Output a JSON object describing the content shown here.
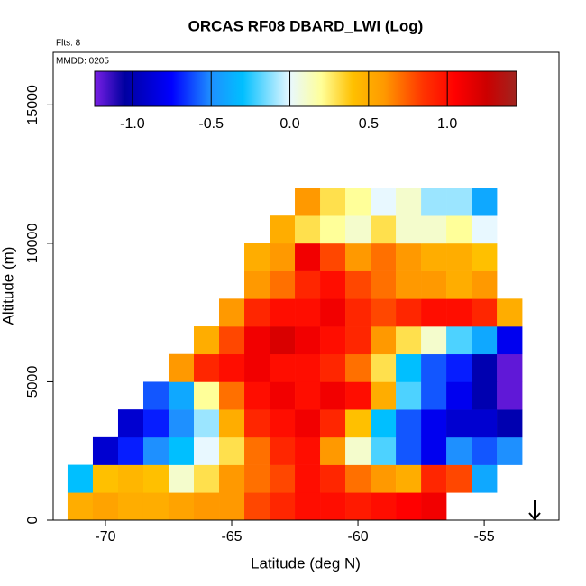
{
  "chart_data": {
    "type": "heatmap",
    "title": "ORCAS RF08 DBARD_LWI (Log)",
    "annotations": [
      "Flts: 8",
      "MMDD: 0205"
    ],
    "xlabel": "Latitude (deg N)",
    "ylabel": "Altitude (m)",
    "xlim": [
      -72.07,
      -52.04
    ],
    "ylim": [
      0,
      16900
    ],
    "xticks": [
      -70,
      -65,
      -60,
      -55
    ],
    "yticks": [
      0,
      5000,
      10000,
      15000
    ],
    "x": [
      -71,
      -70,
      -69,
      -68,
      -67,
      -66,
      -65,
      -64,
      -63,
      -62,
      -61,
      -60,
      -59,
      -58,
      -57,
      -56,
      -55,
      -54
    ],
    "y": [
      500,
      1500,
      2500,
      3500,
      4500,
      5500,
      6500,
      7500,
      8500,
      9500,
      10500,
      11500
    ],
    "z": [
      [
        0.5,
        0.55,
        0.5,
        0.5,
        0.55,
        0.6,
        0.6,
        0.8,
        0.9,
        1.0,
        1.0,
        0.95,
        1.0,
        1.05,
        1.1,
        null,
        null,
        null
      ],
      [
        -0.3,
        0.4,
        0.45,
        0.4,
        0.1,
        0.3,
        0.6,
        0.7,
        0.8,
        1.0,
        0.9,
        0.7,
        0.6,
        0.5,
        0.9,
        0.8,
        -0.4,
        null
      ],
      [
        null,
        -0.9,
        -0.7,
        -0.5,
        -0.3,
        0.0,
        0.3,
        0.7,
        0.9,
        1.0,
        0.6,
        0.1,
        -0.2,
        -0.6,
        -0.8,
        -0.5,
        -0.6,
        -0.5
      ],
      [
        null,
        null,
        -0.9,
        -0.7,
        -0.5,
        -0.1,
        0.5,
        0.9,
        1.0,
        1.1,
        0.9,
        0.4,
        -0.3,
        -0.6,
        -0.8,
        -0.9,
        -0.9,
        -1.0
      ],
      [
        null,
        null,
        null,
        -0.6,
        -0.4,
        0.2,
        0.7,
        1.0,
        1.1,
        1.0,
        1.1,
        1.0,
        0.5,
        -0.2,
        -0.6,
        -0.8,
        -1.0,
        -1.2
      ],
      [
        null,
        null,
        null,
        null,
        0.6,
        0.9,
        1.0,
        1.1,
        1.0,
        1.0,
        0.9,
        0.7,
        0.3,
        -0.3,
        -0.6,
        -0.7,
        -1.0,
        -1.2
      ],
      [
        null,
        null,
        null,
        null,
        null,
        0.5,
        0.8,
        1.1,
        1.2,
        1.1,
        1.0,
        0.9,
        0.6,
        0.3,
        0.1,
        -0.2,
        -0.4,
        -0.8
      ],
      [
        null,
        null,
        null,
        null,
        null,
        null,
        0.6,
        0.9,
        1.0,
        1.0,
        1.1,
        0.9,
        0.8,
        0.9,
        1.0,
        1.0,
        0.9,
        0.5
      ],
      [
        null,
        null,
        null,
        null,
        null,
        null,
        null,
        0.6,
        0.7,
        0.9,
        1.0,
        0.8,
        0.7,
        0.6,
        0.6,
        0.5,
        0.6,
        null
      ],
      [
        null,
        null,
        null,
        null,
        null,
        null,
        null,
        0.5,
        0.6,
        1.1,
        0.8,
        0.6,
        0.7,
        0.6,
        0.5,
        0.5,
        0.4,
        null
      ],
      [
        null,
        null,
        null,
        null,
        null,
        null,
        null,
        null,
        0.5,
        0.3,
        0.2,
        0.1,
        0.3,
        0.1,
        0.1,
        0.2,
        0.0,
        null
      ],
      [
        null,
        null,
        null,
        null,
        null,
        null,
        null,
        null,
        null,
        0.6,
        0.3,
        0.2,
        0.0,
        0.1,
        -0.1,
        -0.1,
        -0.4,
        null
      ]
    ],
    "clim": [
      -1.24,
      1.44
    ],
    "cticks": [
      {
        "value": -1,
        "label": "-1.0"
      },
      -0.5,
      {
        "value": 0,
        "label": "0.0"
      },
      0.5,
      {
        "value": 1,
        "label": "1.0"
      }
    ],
    "colorscale": [
      {
        "value": -1.24,
        "color": "#7a1fe6"
      },
      {
        "value": -1.05,
        "color": "#0000a0"
      },
      {
        "value": -0.75,
        "color": "#0000ff"
      },
      {
        "value": -0.5,
        "color": "#1e90ff"
      },
      {
        "value": -0.3,
        "color": "#00bfff"
      },
      {
        "value": 0,
        "color": "#e8f8ff"
      },
      {
        "value": 0.2,
        "color": "#ffff99"
      },
      {
        "value": 0.4,
        "color": "#ffc000"
      },
      {
        "value": 0.6,
        "color": "#ff9900"
      },
      {
        "value": 0.85,
        "color": "#ff3300"
      },
      {
        "value": 1.05,
        "color": "#ff0000"
      },
      {
        "value": 1.25,
        "color": "#cc0000"
      },
      {
        "value": 1.44,
        "color": "#a0241f"
      }
    ]
  }
}
